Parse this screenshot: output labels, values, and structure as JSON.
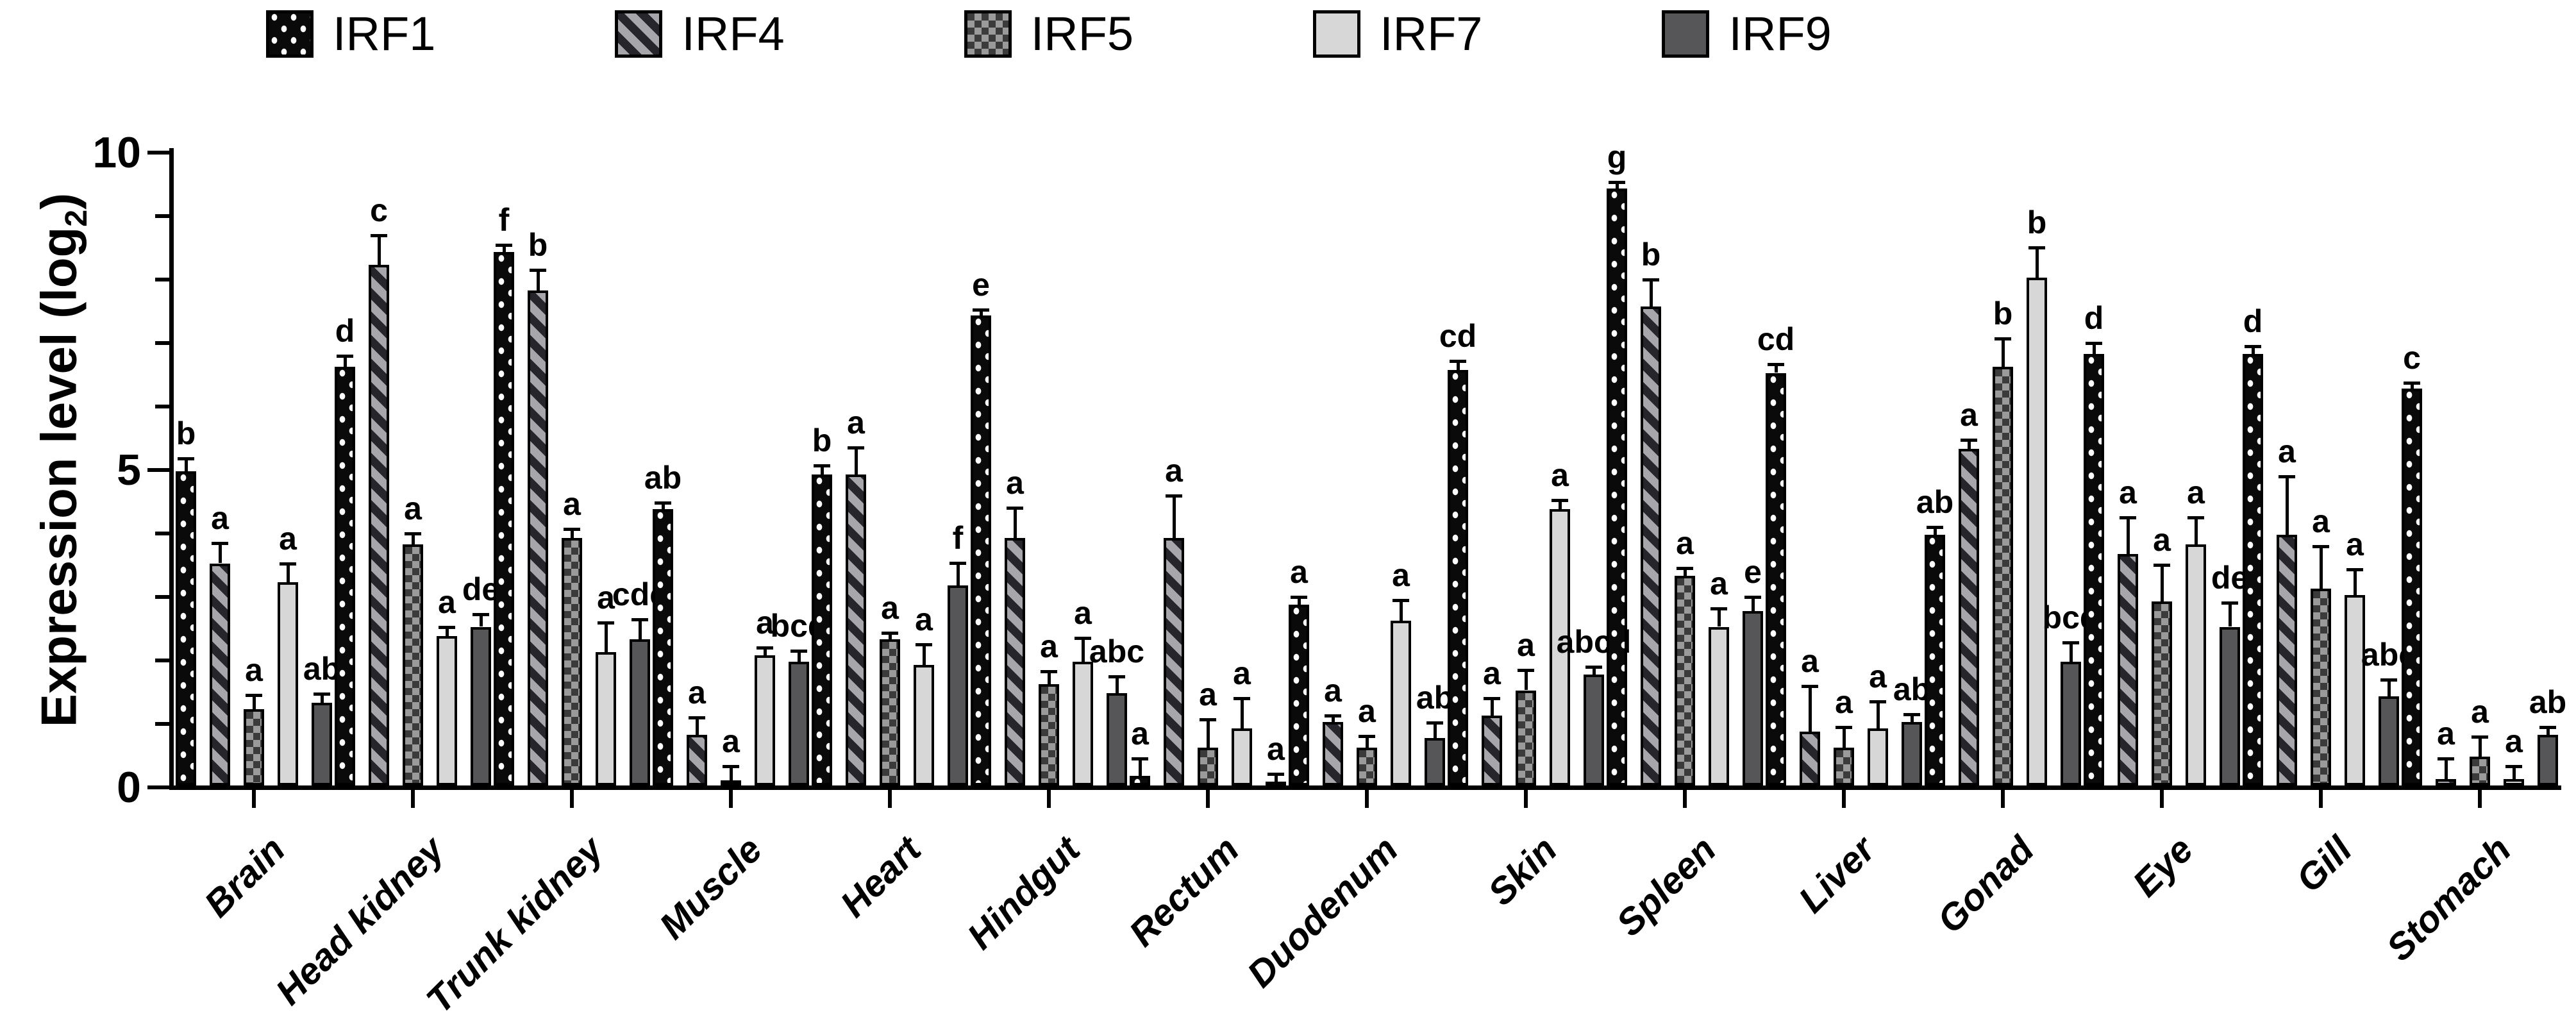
{
  "figure": {
    "description": "Grouped bar chart of IRF gene expression levels across tissues"
  },
  "y_axis": {
    "title_prefix": "Expression level (log",
    "title_sub": "2",
    "title_suffix": ")"
  },
  "chart_data": {
    "type": "bar",
    "title": "",
    "xlabel": "",
    "ylabel": "Expression level (log2)",
    "ylim": [
      0,
      10
    ],
    "yticks": [
      0,
      5,
      10
    ],
    "yticks_minor": [
      1,
      2,
      3,
      4,
      6,
      7,
      8,
      9
    ],
    "grid": false,
    "legend_position": "top",
    "error_bars": "upper whiskers with caps",
    "annotations": "significance letters above error bars",
    "categories": [
      "Brain",
      "Head kidney",
      "Trunk kidney",
      "Muscle",
      "Heart",
      "Hindgut",
      "Rectum",
      "Duodenum",
      "Skin",
      "Spleen",
      "Liver",
      "Gonad",
      "Eye",
      "Gill",
      "Stomach"
    ],
    "series": [
      {
        "name": "IRF1",
        "pattern": "dots",
        "values": [
          4.95,
          6.6,
          8.4,
          4.35,
          4.9,
          7.4,
          0.15,
          2.85,
          6.55,
          9.4,
          6.5,
          3.95,
          6.8,
          6.8,
          6.25
        ],
        "errors": [
          0.18,
          0.15,
          0.1,
          0.08,
          0.12,
          0.07,
          0.25,
          0.1,
          0.12,
          0.08,
          0.12,
          0.1,
          0.15,
          0.1,
          0.07
        ],
        "letters": [
          "b",
          "d",
          "f",
          "ab",
          "b",
          "e",
          "a",
          "a",
          "cd",
          "g",
          "cd",
          "ab",
          "d",
          "d",
          "c"
        ]
      },
      {
        "name": "IRF4",
        "pattern": "stripes",
        "values": [
          3.5,
          8.2,
          7.8,
          0.8,
          4.9,
          3.9,
          3.9,
          1.0,
          1.1,
          7.55,
          0.85,
          5.3,
          3.65,
          3.95,
          0.1
        ],
        "errors": [
          0.3,
          0.45,
          0.3,
          0.25,
          0.4,
          0.45,
          0.65,
          0.08,
          0.25,
          0.4,
          0.7,
          0.12,
          0.55,
          0.9,
          0.3
        ],
        "letters": [
          "a",
          "c",
          "b",
          "a",
          "a",
          "a",
          "a",
          "a",
          "a",
          "b",
          "a",
          "a",
          "a",
          "a",
          "a"
        ]
      },
      {
        "name": "IRF5",
        "pattern": "checker",
        "values": [
          1.2,
          3.8,
          3.9,
          0.08,
          2.3,
          1.6,
          0.6,
          0.6,
          1.5,
          3.3,
          0.6,
          6.6,
          2.9,
          3.1,
          0.45
        ],
        "errors": [
          0.2,
          0.15,
          0.12,
          0.2,
          0.08,
          0.18,
          0.42,
          0.16,
          0.3,
          0.1,
          0.3,
          0.42,
          0.55,
          0.65,
          0.3
        ],
        "letters": [
          "a",
          "a",
          "a",
          "a",
          "a",
          "a",
          "a",
          "a",
          "a",
          "a",
          "a",
          "b",
          "a",
          "a",
          "a"
        ]
      },
      {
        "name": "IRF7",
        "pattern": "light",
        "values": [
          3.2,
          2.35,
          2.1,
          2.05,
          1.9,
          1.95,
          0.9,
          2.6,
          4.35,
          2.5,
          0.9,
          8.0,
          3.8,
          3.0,
          0.1
        ],
        "errors": [
          0.27,
          0.12,
          0.45,
          0.1,
          0.3,
          0.35,
          0.45,
          0.3,
          0.12,
          0.27,
          0.4,
          0.45,
          0.4,
          0.38,
          0.18
        ],
        "letters": [
          "a",
          "a",
          "a",
          "a",
          "a",
          "a",
          "a",
          "a",
          "a",
          "a",
          "a",
          "b",
          "a",
          "a",
          "a"
        ]
      },
      {
        "name": "IRF9",
        "pattern": "dark",
        "values": [
          1.3,
          2.5,
          2.3,
          1.95,
          3.15,
          1.45,
          0.05,
          0.75,
          1.75,
          2.75,
          1.0,
          1.95,
          2.5,
          1.4,
          0.8
        ],
        "errors": [
          0.12,
          0.18,
          0.3,
          0.15,
          0.33,
          0.25,
          0.1,
          0.22,
          0.1,
          0.2,
          0.1,
          0.28,
          0.36,
          0.25,
          0.1
        ],
        "letters": [
          "ab",
          "de",
          "cde",
          "bcd",
          "f",
          "abc",
          "a",
          "ab",
          "abcd",
          "e",
          "ab",
          "bcd",
          "de",
          "abc",
          "ab"
        ]
      }
    ],
    "colors": {
      "bar_outline": "#000000",
      "dots_bg": "#0a0a0a",
      "stripes_light": "#a6a6ab",
      "stripes_dark": "#25252b",
      "checker_light": "#9a9a9a",
      "checker_dark": "#3b3b3b",
      "light_gray": "#d7d7d7",
      "dark_gray": "#565658"
    }
  }
}
